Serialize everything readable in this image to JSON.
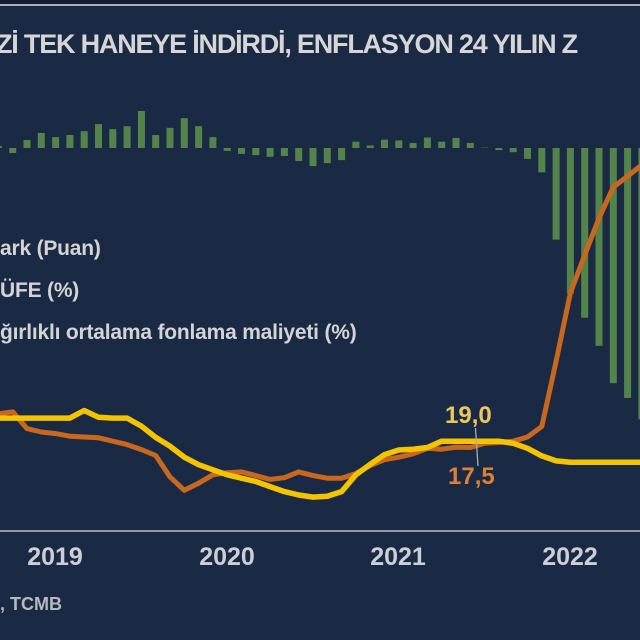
{
  "title": "Zİ TEK HANEYE İNDİRDİ, ENFLASYON 24 YILIN Z",
  "legend": {
    "items": [
      {
        "label": "ark (Puan)",
        "color": "#53854a"
      },
      {
        "label": "ÜFE (%)",
        "color": "#c8681e"
      },
      {
        "label": "ğırlıklı ortalama fonlama maliyeti (%)",
        "color": "#f5c400"
      }
    ]
  },
  "annotations": {
    "funding_cost_value": "19,0",
    "tufe_value": "17,5"
  },
  "source": ", TCMB",
  "colors": {
    "background": "#1b2a44",
    "title_text": "#d6d6d6",
    "bar_green": "#53854a",
    "line_orange": "#c8681e",
    "line_yellow": "#f5c400",
    "label_yellow": "#ecc75e",
    "label_orange": "#dd8134",
    "axis_line": "#b9bfc8",
    "frame_line": "#a9b1bd",
    "callout_line": "#a7adb5",
    "tick_text": "#ccd0d6",
    "source_text": "#b6bac0"
  },
  "chart_data": {
    "type": "bar+line",
    "title": "Zİ TEK HANEYE İNDİRDİ, ENFLASYON 24 YILIN Z",
    "x_ticks": [
      "2019",
      "2020",
      "2021",
      "2022"
    ],
    "grid": "single horizontal baseline under lines",
    "legend_position": "left middle, cropped at left edge",
    "months": [
      "2018-09",
      "2018-10",
      "2018-11",
      "2018-12",
      "2019-01",
      "2019-02",
      "2019-03",
      "2019-04",
      "2019-05",
      "2019-06",
      "2019-07",
      "2019-08",
      "2019-09",
      "2019-10",
      "2019-11",
      "2019-12",
      "2020-01",
      "2020-02",
      "2020-03",
      "2020-04",
      "2020-05",
      "2020-06",
      "2020-07",
      "2020-08",
      "2020-09",
      "2020-10",
      "2020-11",
      "2020-12",
      "2021-01",
      "2021-02",
      "2021-03",
      "2021-04",
      "2021-05",
      "2021-06",
      "2021-07",
      "2021-08",
      "2021-09",
      "2021-10",
      "2021-11",
      "2021-12",
      "2022-01",
      "2022-02",
      "2022-03",
      "2022-04",
      "2022-05",
      "2022-06"
    ],
    "series": [
      {
        "name": "Fark (Puan)",
        "type": "bar",
        "color": "#53854a",
        "values": [
          0.5,
          -1.2,
          1.9,
          3.6,
          2.6,
          3.1,
          4.0,
          5.7,
          4.5,
          5.2,
          8.8,
          3.1,
          4.8,
          7.1,
          5.2,
          2.6,
          -0.7,
          -1.4,
          -1.7,
          -2.1,
          -1.9,
          -3.1,
          -4.3,
          -3.6,
          -2.9,
          1.5,
          0.6,
          2.0,
          1.8,
          1.2,
          2.5,
          1.5,
          2.4,
          1.2,
          0.1,
          -0.5,
          -1.0,
          -2.6,
          -5.8,
          -21.8,
          -34.7,
          -40.4,
          -47.1,
          -56.0,
          -59.5,
          -64.6
        ]
      },
      {
        "name": "TÜFE (%)",
        "type": "line",
        "color": "#c8681e",
        "values": [
          25.5,
          26.0,
          22.0,
          21.2,
          20.8,
          20.2,
          20.0,
          19.8,
          19.0,
          18.2,
          17.0,
          15.6,
          10.5,
          7.3,
          9.0,
          11.0,
          11.5,
          11.7,
          10.8,
          9.9,
          10.3,
          11.7,
          10.8,
          10.2,
          10.2,
          11.3,
          13.2,
          14.6,
          15.2,
          16.0,
          17.3,
          17.1,
          17.6,
          17.5,
          18.5,
          18.7,
          19.0,
          20.0,
          22.5,
          38.0,
          54.3,
          63.3,
          72.1,
          79.5,
          82.1,
          84.8
        ]
      },
      {
        "name": "Ağırlıklı ortalama fonlama maliyeti (%)",
        "type": "line",
        "color": "#f5c400",
        "values": [
          24.5,
          24.5,
          24.5,
          24.5,
          24.5,
          24.5,
          26.3,
          24.7,
          24.5,
          24.5,
          22.6,
          19.9,
          17.8,
          15.2,
          13.4,
          12.2,
          11.0,
          10.2,
          9.4,
          8.2,
          7.0,
          6.2,
          5.7,
          5.9,
          7.0,
          11.0,
          13.5,
          15.8,
          16.9,
          17.1,
          17.5,
          19.0,
          19.0,
          19.0,
          19.0,
          19.0,
          18.5,
          17.3,
          15.5,
          14.3,
          14.0,
          14.0,
          14.0,
          14.0,
          14.0,
          14.0
        ]
      }
    ]
  }
}
